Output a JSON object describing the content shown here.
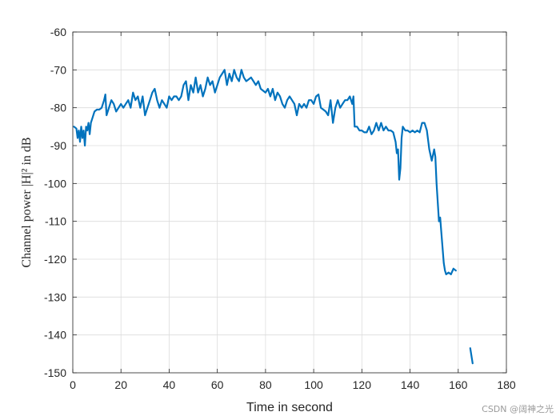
{
  "chart_data": {
    "type": "line",
    "xlabel": "Time in second",
    "ylabel": "Channel power |H|² in dB",
    "xlim": [
      0,
      180
    ],
    "ylim": [
      -150,
      -60
    ],
    "xticks": [
      "0",
      "20",
      "40",
      "60",
      "80",
      "100",
      "120",
      "140",
      "160",
      "180"
    ],
    "yticks": [
      "-60",
      "-70",
      "-80",
      "-90",
      "-100",
      "-110",
      "-120",
      "-130",
      "-140",
      "-150"
    ],
    "grid": true,
    "line_color": "#0072BD",
    "series": [
      {
        "segments": [
          [
            [
              0.5,
              -85
            ],
            [
              1.5,
              -85.5
            ],
            [
              2,
              -88
            ],
            [
              2.5,
              -86
            ],
            [
              3,
              -89
            ],
            [
              3.5,
              -85
            ],
            [
              4,
              -88
            ],
            [
              4.5,
              -86
            ],
            [
              5,
              -90
            ],
            [
              5.5,
              -85
            ],
            [
              6,
              -86
            ],
            [
              6.5,
              -84
            ],
            [
              7,
              -87
            ],
            [
              7.5,
              -84
            ],
            [
              8,
              -83
            ],
            [
              9,
              -81
            ],
            [
              10,
              -80.5
            ],
            [
              11,
              -80.5
            ],
            [
              12,
              -80
            ],
            [
              13,
              -78
            ],
            [
              13.5,
              -76.5
            ],
            [
              14,
              -82
            ],
            [
              15,
              -80
            ],
            [
              16,
              -78
            ],
            [
              17,
              -79
            ],
            [
              18,
              -81
            ],
            [
              19,
              -80
            ],
            [
              20,
              -79
            ],
            [
              21,
              -80
            ],
            [
              22,
              -79
            ],
            [
              23,
              -78
            ],
            [
              24,
              -80
            ],
            [
              25,
              -76
            ],
            [
              26,
              -78
            ],
            [
              27,
              -77
            ],
            [
              28,
              -80
            ],
            [
              29,
              -77
            ],
            [
              30,
              -82
            ],
            [
              31,
              -80
            ],
            [
              32,
              -78
            ],
            [
              33,
              -76
            ],
            [
              34,
              -75
            ],
            [
              35,
              -78
            ],
            [
              36,
              -80
            ],
            [
              37,
              -78
            ],
            [
              38,
              -79
            ],
            [
              39,
              -80
            ],
            [
              40,
              -77
            ],
            [
              41,
              -78
            ],
            [
              42,
              -77
            ],
            [
              43,
              -77
            ],
            [
              44,
              -78
            ],
            [
              45,
              -77
            ],
            [
              46,
              -74
            ],
            [
              47,
              -73
            ],
            [
              48,
              -78
            ],
            [
              49,
              -74
            ],
            [
              50,
              -76
            ],
            [
              51,
              -72
            ],
            [
              52,
              -76
            ],
            [
              53,
              -74
            ],
            [
              54,
              -77
            ],
            [
              55,
              -75
            ],
            [
              56,
              -72
            ],
            [
              57,
              -74
            ],
            [
              58,
              -73
            ],
            [
              59,
              -76
            ],
            [
              60,
              -74
            ],
            [
              61,
              -72
            ],
            [
              62,
              -71
            ],
            [
              63,
              -70
            ],
            [
              64,
              -74
            ],
            [
              65,
              -71
            ],
            [
              66,
              -73
            ],
            [
              67,
              -70
            ],
            [
              68,
              -72
            ],
            [
              69,
              -73
            ],
            [
              70,
              -70
            ],
            [
              71,
              -72
            ],
            [
              72,
              -73
            ],
            [
              73,
              -72.5
            ],
            [
              74,
              -72
            ],
            [
              75,
              -73
            ],
            [
              76,
              -74
            ],
            [
              77,
              -73
            ],
            [
              78,
              -75
            ],
            [
              79,
              -75.5
            ],
            [
              80,
              -76
            ],
            [
              81,
              -75
            ],
            [
              82,
              -77
            ],
            [
              83,
              -75
            ],
            [
              84,
              -78
            ],
            [
              85,
              -76
            ],
            [
              86,
              -77
            ],
            [
              87,
              -79
            ],
            [
              88,
              -80
            ],
            [
              89,
              -78
            ],
            [
              90,
              -77
            ],
            [
              91,
              -78
            ],
            [
              92,
              -79
            ],
            [
              93,
              -82
            ],
            [
              94,
              -79
            ],
            [
              95,
              -80
            ],
            [
              96,
              -79
            ],
            [
              97,
              -80
            ],
            [
              98,
              -78
            ],
            [
              99,
              -78
            ],
            [
              100,
              -79
            ],
            [
              101,
              -77
            ],
            [
              102,
              -76.5
            ],
            [
              103,
              -80
            ],
            [
              104,
              -80.5
            ],
            [
              105,
              -81
            ],
            [
              106,
              -82
            ],
            [
              107,
              -78
            ],
            [
              108,
              -84
            ],
            [
              109,
              -80
            ],
            [
              110,
              -78
            ],
            [
              111,
              -80
            ],
            [
              112,
              -79
            ],
            [
              113,
              -78
            ],
            [
              114,
              -78
            ],
            [
              115,
              -77
            ],
            [
              116,
              -79
            ],
            [
              116.5,
              -77
            ],
            [
              117,
              -85
            ],
            [
              118,
              -85
            ],
            [
              119,
              -86
            ],
            [
              120,
              -86
            ],
            [
              121,
              -86.5
            ],
            [
              122,
              -86.5
            ],
            [
              123,
              -85
            ],
            [
              124,
              -87
            ],
            [
              125,
              -86
            ],
            [
              126,
              -84
            ],
            [
              127,
              -86
            ],
            [
              128,
              -84
            ],
            [
              129,
              -86
            ],
            [
              130,
              -85
            ],
            [
              131,
              -86
            ],
            [
              132,
              -86
            ],
            [
              133,
              -86.5
            ],
            [
              134,
              -89
            ],
            [
              134.5,
              -92
            ],
            [
              135,
              -91
            ],
            [
              135.5,
              -99
            ],
            [
              136,
              -96
            ],
            [
              136.5,
              -88
            ],
            [
              137,
              -85
            ],
            [
              138,
              -86
            ],
            [
              139,
              -86
            ],
            [
              140,
              -86.5
            ],
            [
              141,
              -86
            ],
            [
              142,
              -86.5
            ],
            [
              143,
              -86
            ],
            [
              144,
              -86.5
            ],
            [
              145,
              -84
            ],
            [
              146,
              -84
            ],
            [
              147,
              -86
            ],
            [
              148,
              -91
            ],
            [
              149,
              -94
            ],
            [
              150,
              -91
            ],
            [
              150.5,
              -93
            ],
            [
              151,
              -100
            ],
            [
              152,
              -110
            ],
            [
              152.5,
              -109
            ],
            [
              153,
              -113
            ],
            [
              153.5,
              -117
            ],
            [
              154,
              -121
            ],
            [
              154.5,
              -123
            ],
            [
              155,
              -124
            ],
            [
              156,
              -123.5
            ],
            [
              157,
              -124
            ],
            [
              158,
              -122.5
            ],
            [
              159,
              -123
            ]
          ],
          [
            [
              165,
              -143.5
            ],
            [
              166,
              -147.5
            ]
          ]
        ]
      }
    ]
  },
  "watermark": "CSDN @阔神之光"
}
